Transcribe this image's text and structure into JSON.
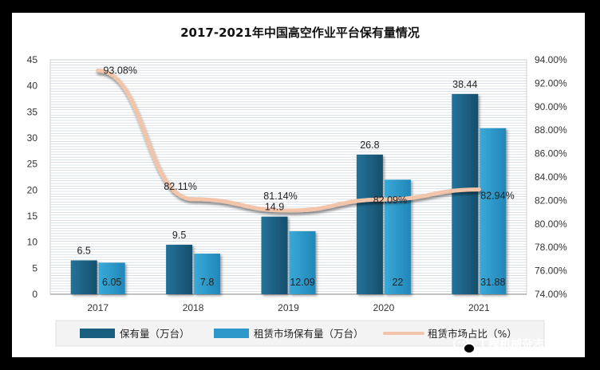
{
  "chart_data": {
    "type": "bar",
    "title": "2017-2021年中国高空作业平台保有量情况",
    "categories": [
      "2017",
      "2018",
      "2019",
      "2020",
      "2021"
    ],
    "series": [
      {
        "name": "保有量（万台）",
        "values": [
          6.5,
          9.5,
          14.9,
          26.8,
          38.44
        ],
        "labels": [
          "6.5",
          "9.5",
          "14.9",
          "26.8",
          "38.44"
        ],
        "color": "#1b5f80"
      },
      {
        "name": "租赁市场保有量（万台）",
        "values": [
          6.05,
          7.8,
          12.09,
          22,
          31.88
        ],
        "labels": [
          "6.05",
          "7.8",
          "12.09",
          "22",
          "31.88"
        ],
        "color": "#2b98c9"
      },
      {
        "name": "租赁市场占比（%）",
        "type": "line",
        "axis": "right",
        "values": [
          93.08,
          82.11,
          81.14,
          82.09,
          82.94
        ],
        "labels": [
          "93.08%",
          "82.11%",
          "81.14%",
          "82.09%",
          "82.94%"
        ],
        "color": "#f2c4aa"
      }
    ],
    "y_left": {
      "ylim": [
        0,
        45
      ],
      "ticks": [
        "0",
        "5",
        "10",
        "15",
        "20",
        "25",
        "30",
        "35",
        "40",
        "45"
      ]
    },
    "y_right": {
      "ylim": [
        74,
        94
      ],
      "ticks": [
        "74.00%",
        "76.00%",
        "78.00%",
        "80.00%",
        "82.00%",
        "84.00%",
        "86.00%",
        "88.00%",
        "90.00%",
        "92.00%",
        "94.00%"
      ]
    },
    "grid": true,
    "legend": "bottom"
  },
  "watermark": {
    "icon": "wechat-icon",
    "text": "工程机械杂志社"
  }
}
